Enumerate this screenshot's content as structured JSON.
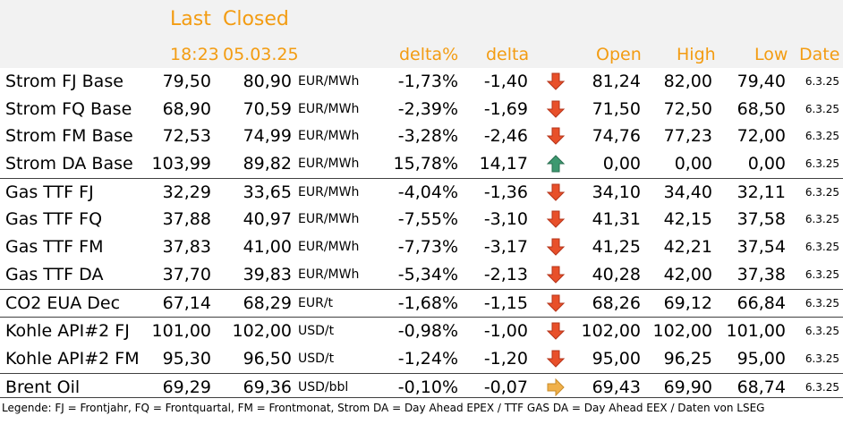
{
  "header": {
    "last_label": "Last",
    "closed_label": "Closed",
    "last_time": "18:23",
    "closed_date": "05.03.25",
    "delta_pct_label": "delta%",
    "delta_label": "delta",
    "open_label": "Open",
    "high_label": "High",
    "low_label": "Low",
    "date_label": "Date"
  },
  "rows": [
    {
      "name": "Strom FJ Base",
      "last": "79,50",
      "closed": "80,90",
      "unit": "EUR/MWh",
      "delta_pct": "-1,73%",
      "delta": "-1,40",
      "dir": "down-arrow-icon",
      "open": "81,24",
      "high": "82,00",
      "low": "79,40",
      "date": "6.3.25"
    },
    {
      "name": "Strom FQ Base",
      "last": "68,90",
      "closed": "70,59",
      "unit": "EUR/MWh",
      "delta_pct": "-2,39%",
      "delta": "-1,69",
      "dir": "down-arrow-icon",
      "open": "71,50",
      "high": "72,50",
      "low": "68,50",
      "date": "6.3.25"
    },
    {
      "name": "Strom FM Base",
      "last": "72,53",
      "closed": "74,99",
      "unit": "EUR/MWh",
      "delta_pct": "-3,28%",
      "delta": "-2,46",
      "dir": "down-arrow-icon",
      "open": "74,76",
      "high": "77,23",
      "low": "72,00",
      "date": "6.3.25"
    },
    {
      "name": "Strom DA Base",
      "last": "103,99",
      "closed": "89,82",
      "unit": "EUR/MWh",
      "delta_pct": "15,78%",
      "delta": "14,17",
      "dir": "up-arrow-icon",
      "open": "0,00",
      "high": "0,00",
      "low": "0,00",
      "date": "6.3.25"
    },
    {
      "name": "Gas TTF FJ",
      "last": "32,29",
      "closed": "33,65",
      "unit": "EUR/MWh",
      "delta_pct": "-4,04%",
      "delta": "-1,36",
      "dir": "down-arrow-icon",
      "open": "34,10",
      "high": "34,40",
      "low": "32,11",
      "date": "6.3.25"
    },
    {
      "name": "Gas TTF FQ",
      "last": "37,88",
      "closed": "40,97",
      "unit": "EUR/MWh",
      "delta_pct": "-7,55%",
      "delta": "-3,10",
      "dir": "down-arrow-icon",
      "open": "41,31",
      "high": "42,15",
      "low": "37,58",
      "date": "6.3.25"
    },
    {
      "name": "Gas TTF FM",
      "last": "37,83",
      "closed": "41,00",
      "unit": "EUR/MWh",
      "delta_pct": "-7,73%",
      "delta": "-3,17",
      "dir": "down-arrow-icon",
      "open": "41,25",
      "high": "42,21",
      "low": "37,54",
      "date": "6.3.25"
    },
    {
      "name": "Gas TTF DA",
      "last": "37,70",
      "closed": "39,83",
      "unit": "EUR/MWh",
      "delta_pct": "-5,34%",
      "delta": "-2,13",
      "dir": "down-arrow-icon",
      "open": "40,28",
      "high": "42,00",
      "low": "37,38",
      "date": "6.3.25"
    },
    {
      "name": "CO2 EUA Dec",
      "last": "67,14",
      "closed": "68,29",
      "unit": "EUR/t",
      "delta_pct": "-1,68%",
      "delta": "-1,15",
      "dir": "down-arrow-icon",
      "open": "68,26",
      "high": "69,12",
      "low": "66,84",
      "date": "6.3.25"
    },
    {
      "name": "Kohle API#2 FJ",
      "last": "101,00",
      "closed": "102,00",
      "unit": "USD/t",
      "delta_pct": "-0,98%",
      "delta": "-1,00",
      "dir": "down-arrow-icon",
      "open": "102,00",
      "high": "102,00",
      "low": "101,00",
      "date": "6.3.25"
    },
    {
      "name": "Kohle API#2 FM",
      "last": "95,30",
      "closed": "96,50",
      "unit": "USD/t",
      "delta_pct": "-1,24%",
      "delta": "-1,20",
      "dir": "down-arrow-icon",
      "open": "95,00",
      "high": "96,25",
      "low": "95,00",
      "date": "6.3.25"
    },
    {
      "name": "Brent Oil",
      "last": "69,29",
      "closed": "69,36",
      "unit": "USD/bbl",
      "delta_pct": "-0,10%",
      "delta": "-0,07",
      "dir": "right-arrow-icon",
      "open": "69,43",
      "high": "69,90",
      "low": "68,74",
      "date": "6.3.25"
    }
  ],
  "colors": {
    "header_text": "#f39c12",
    "down_arrow": "#e8502a",
    "up_arrow": "#3d9970",
    "right_arrow": "#f0b04a",
    "header_bg": "#f2f2f2"
  },
  "legend": "Legende: FJ = Frontjahr, FQ = Frontquartal, FM = Frontmonat, Strom DA = Day Ahead EPEX / TTF GAS DA = Day Ahead EEX / Daten von LSEG"
}
